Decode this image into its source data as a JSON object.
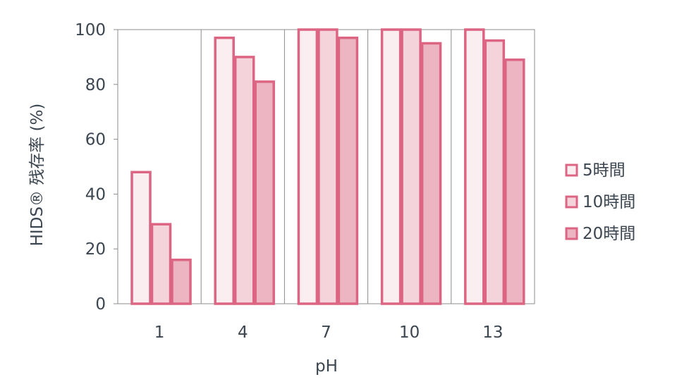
{
  "chart_data": {
    "type": "bar",
    "xlabel": "pH",
    "ylabel": "HIDS® 残存率 (%)",
    "categories": [
      "1",
      "4",
      "7",
      "10",
      "13"
    ],
    "ylim": [
      0,
      100
    ],
    "yticks": [
      0,
      20,
      40,
      60,
      80,
      100
    ],
    "grid": "vertical category separators",
    "legend_position": "right",
    "series": [
      {
        "name": "5時間",
        "values": [
          48,
          97,
          100,
          100,
          100
        ],
        "fill": "#fbeef1"
      },
      {
        "name": "10時間",
        "values": [
          29,
          90,
          100,
          100,
          96
        ],
        "fill": "#f4d3db"
      },
      {
        "name": "20時間",
        "values": [
          16,
          81,
          97,
          95,
          89
        ],
        "fill": "#edb5c2"
      }
    ],
    "colors": {
      "bar_outline": "#dc6583",
      "axis": "#8c8c8c",
      "text": "#3c4650"
    }
  }
}
